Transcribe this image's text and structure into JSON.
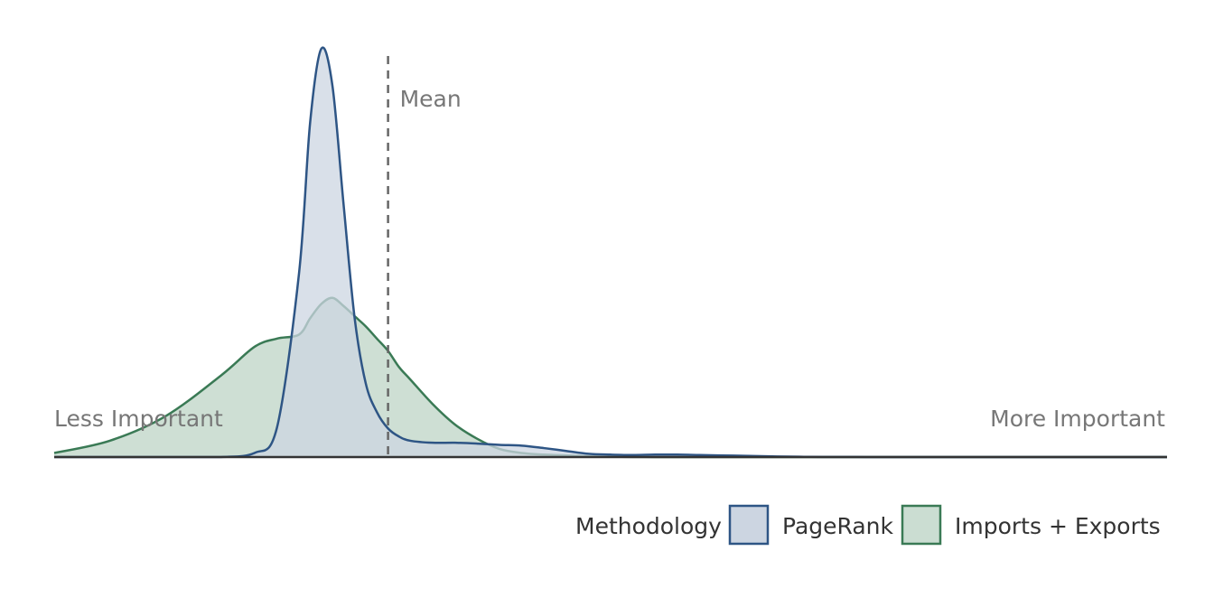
{
  "chart_data": {
    "type": "area",
    "title": "",
    "xlabel": "",
    "ylabel": "",
    "axis_left_label": "Less Important",
    "axis_right_label": "More Important",
    "mean_label": "Mean",
    "mean_x": 0.3,
    "xlim": [
      0,
      1
    ],
    "ylim": [
      0,
      1
    ],
    "grid": false,
    "legend_position": "bottom-right",
    "legend_title": "Methodology",
    "x": [
      0.0,
      0.05,
      0.1,
      0.15,
      0.18,
      0.2,
      0.22,
      0.23,
      0.24,
      0.25,
      0.26,
      0.27,
      0.28,
      0.29,
      0.3,
      0.31,
      0.32,
      0.34,
      0.36,
      0.38,
      0.4,
      0.42,
      0.44,
      0.46,
      0.48,
      0.5,
      0.52,
      0.54,
      0.56,
      0.58,
      0.6,
      0.62,
      0.64,
      0.66,
      0.68,
      0.7,
      0.72,
      0.74,
      0.76,
      0.78,
      0.8,
      0.85,
      0.9,
      0.95,
      1.0
    ],
    "series": [
      {
        "name": "PageRank",
        "color": "#2e5585",
        "fill": "#ccd5e1",
        "values": [
          0,
          0,
          0,
          0,
          0.01,
          0.07,
          0.45,
          0.82,
          1.0,
          0.91,
          0.62,
          0.34,
          0.18,
          0.11,
          0.07,
          0.05,
          0.04,
          0.035,
          0.035,
          0.033,
          0.03,
          0.028,
          0.022,
          0.015,
          0.008,
          0.006,
          0.005,
          0.006,
          0.006,
          0.005,
          0.004,
          0.003,
          0.002,
          0.001,
          0.0005,
          0.0003,
          0.0002,
          0,
          0,
          0,
          0,
          0,
          0,
          0,
          0
        ]
      },
      {
        "name": "Imports + Exports",
        "color": "#3a7a55",
        "fill": "#cbddd2",
        "values": [
          0.01,
          0.04,
          0.1,
          0.2,
          0.27,
          0.29,
          0.3,
          0.34,
          0.375,
          0.39,
          0.37,
          0.345,
          0.32,
          0.29,
          0.26,
          0.22,
          0.19,
          0.13,
          0.08,
          0.045,
          0.02,
          0.01,
          0.006,
          0.004,
          0.002,
          0.0008,
          0.0003,
          0.0001,
          0,
          0,
          0,
          0,
          0,
          0,
          0,
          0,
          0,
          0,
          0,
          0,
          0,
          0,
          0,
          0,
          0
        ]
      }
    ]
  }
}
